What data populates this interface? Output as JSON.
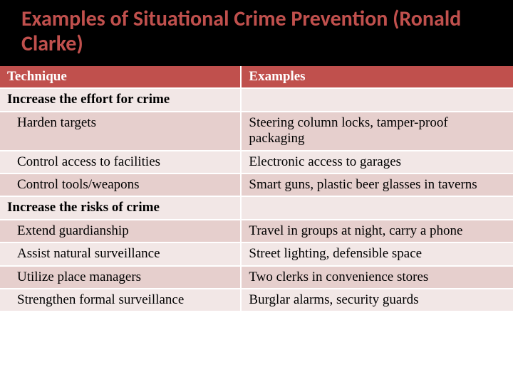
{
  "title": "Examples of Situational Crime Prevention  (Ronald Clarke)",
  "colors": {
    "title_bg": "#000000",
    "title_fg": "#c0504d",
    "header_bg": "#c0504d",
    "header_fg": "#ffffff",
    "band_light": "#f2e7e6",
    "band_dark": "#e6cfcd",
    "text": "#000000"
  },
  "typography": {
    "title_font": "Calibri",
    "title_fontsize": 30,
    "title_weight": 700,
    "body_font": "Georgia",
    "body_fontsize": 19
  },
  "table": {
    "type": "table",
    "columns": [
      {
        "key": "technique",
        "label": "Technique",
        "width_pct": 47
      },
      {
        "key": "examples",
        "label": "Examples",
        "width_pct": 53
      }
    ],
    "rows": [
      {
        "technique": "Increase the effort for crime",
        "examples": "",
        "bold": true,
        "indent": false,
        "band": "light"
      },
      {
        "technique": "Harden targets",
        "examples": "Steering column locks, tamper-proof packaging",
        "bold": false,
        "indent": true,
        "band": "dark"
      },
      {
        "technique": "Control access to facilities",
        "examples": "Electronic access to garages",
        "bold": false,
        "indent": true,
        "band": "light"
      },
      {
        "technique": "Control tools/weapons",
        "examples": "Smart guns, plastic beer glasses in taverns",
        "bold": false,
        "indent": true,
        "band": "dark"
      },
      {
        "technique": "Increase the risks of crime",
        "examples": "",
        "bold": true,
        "indent": false,
        "band": "light"
      },
      {
        "technique": "Extend guardianship",
        "examples": "Travel in groups at night, carry a phone",
        "bold": false,
        "indent": true,
        "band": "dark"
      },
      {
        "technique": "Assist natural surveillance",
        "examples": "Street lighting, defensible space",
        "bold": false,
        "indent": true,
        "band": "light"
      },
      {
        "technique": "Utilize place managers",
        "examples": "Two clerks in convenience stores",
        "bold": false,
        "indent": true,
        "band": "dark"
      },
      {
        "technique": "Strengthen formal surveillance",
        "examples": "Burglar alarms, security guards",
        "bold": false,
        "indent": true,
        "band": "light"
      }
    ]
  }
}
